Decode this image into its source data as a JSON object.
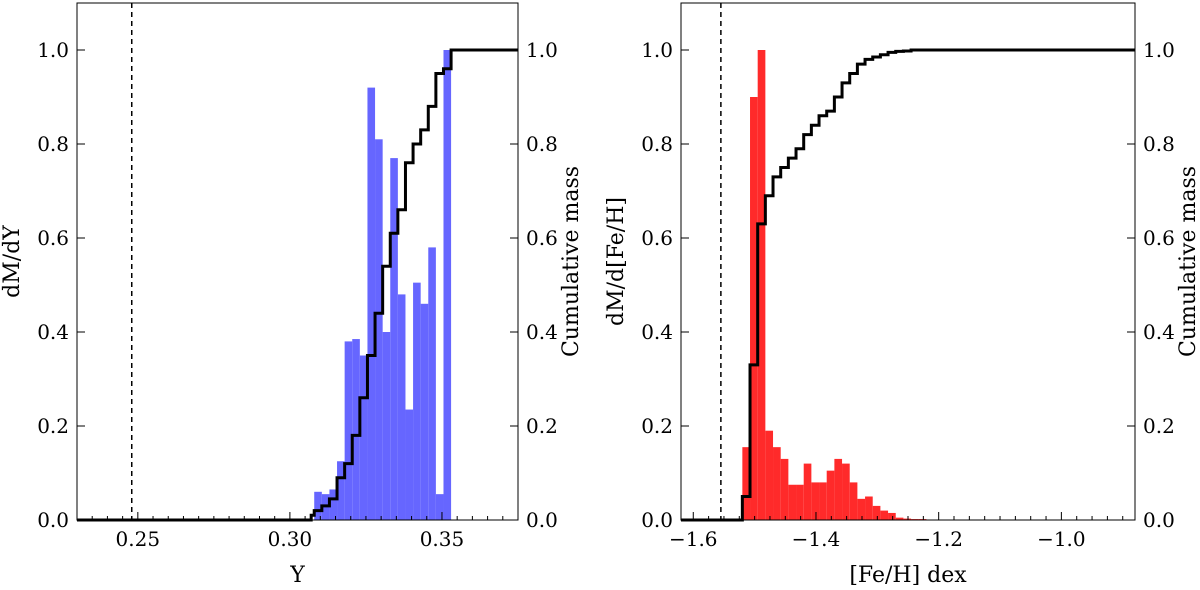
{
  "chart_data": [
    {
      "type": "bar",
      "id": "helium",
      "xlabel": "Y",
      "ylabel": "dM/dY",
      "y2label": "Cumulative mass",
      "xlim": [
        0.23,
        0.375
      ],
      "ylim": [
        0,
        1.1
      ],
      "xticks": [
        0.25,
        0.3,
        0.35
      ],
      "xtick_labels": [
        "0.25",
        "0.30",
        "0.35"
      ],
      "yticks": [
        0,
        0.2,
        0.4,
        0.6,
        0.8,
        1.0
      ],
      "ytick_labels": [
        "0.0",
        "0.2",
        "0.4",
        "0.6",
        "0.8",
        "1.0"
      ],
      "y2tick_labels": [
        "0.0",
        "0.2",
        "0.4",
        "0.6",
        "0.8",
        "1.0"
      ],
      "minor_x_step": 0.005,
      "bar_color": "#6666ff",
      "bin_edges": [
        0.308,
        0.3105,
        0.313,
        0.3155,
        0.318,
        0.3205,
        0.323,
        0.3255,
        0.328,
        0.3305,
        0.333,
        0.3355,
        0.338,
        0.3405,
        0.343,
        0.3455,
        0.348,
        0.3505,
        0.353,
        0.3555,
        0.358
      ],
      "values": [
        0.06,
        0.055,
        0.065,
        0.125,
        0.38,
        0.385,
        0.35,
        0.92,
        0.81,
        0.4,
        0.77,
        0.48,
        0.235,
        0.505,
        0.46,
        0.58,
        0.055,
        1.0,
        0.0,
        0.0
      ],
      "cumulative": {
        "label": "Cumulative mass",
        "x": [
          0.23,
          0.307,
          0.308,
          0.3105,
          0.313,
          0.3155,
          0.318,
          0.3205,
          0.323,
          0.3255,
          0.328,
          0.3305,
          0.333,
          0.3355,
          0.338,
          0.3405,
          0.343,
          0.3455,
          0.348,
          0.3505,
          0.353,
          0.3555,
          0.358,
          0.375
        ],
        "y": [
          0.0,
          0.01,
          0.02,
          0.03,
          0.045,
          0.09,
          0.12,
          0.18,
          0.26,
          0.35,
          0.44,
          0.54,
          0.61,
          0.66,
          0.76,
          0.8,
          0.83,
          0.88,
          0.95,
          0.96,
          1.0,
          1.0,
          1.0,
          1.0
        ]
      },
      "reference_line": {
        "x": 0.248,
        "style": "dashed"
      }
    },
    {
      "type": "bar",
      "id": "metallicity",
      "xlabel": "[Fe/H] dex",
      "ylabel": "dM/d[Fe/H]",
      "y2label": "Cumulative mass",
      "xlim": [
        -1.62,
        -0.88
      ],
      "ylim": [
        0,
        1.1
      ],
      "xticks": [
        -1.6,
        -1.4,
        -1.2,
        -1.0
      ],
      "xtick_labels": [
        "−1.6",
        "−1.4",
        "−1.2",
        "−1.0"
      ],
      "yticks": [
        0,
        0.2,
        0.4,
        0.6,
        0.8,
        1.0
      ],
      "ytick_labels": [
        "0.0",
        "0.2",
        "0.4",
        "0.6",
        "0.8",
        "1.0"
      ],
      "y2tick_labels": [
        "0.0",
        "0.2",
        "0.4",
        "0.6",
        "0.8",
        "1.0"
      ],
      "minor_x_step": 0.025,
      "bar_color": "#ff2a2a",
      "bin_edges": [
        -1.52,
        -1.5075,
        -1.495,
        -1.4825,
        -1.47,
        -1.4575,
        -1.445,
        -1.4325,
        -1.42,
        -1.4075,
        -1.395,
        -1.3825,
        -1.37,
        -1.3575,
        -1.345,
        -1.3325,
        -1.32,
        -1.3075,
        -1.295,
        -1.2825,
        -1.27,
        -1.2575,
        -1.245,
        -1.2325,
        -1.22,
        -1.2075
      ],
      "values": [
        0.155,
        0.9,
        1.0,
        0.19,
        0.155,
        0.13,
        0.075,
        0.075,
        0.12,
        0.08,
        0.08,
        0.105,
        0.13,
        0.12,
        0.08,
        0.045,
        0.05,
        0.03,
        0.02,
        0.015,
        0.005,
        0.003,
        0.002,
        0.002,
        0.001
      ],
      "cumulative": {
        "label": "Cumulative mass",
        "x": [
          -1.62,
          -1.525,
          -1.52,
          -1.5075,
          -1.495,
          -1.4825,
          -1.47,
          -1.4575,
          -1.445,
          -1.4325,
          -1.42,
          -1.4075,
          -1.395,
          -1.3825,
          -1.37,
          -1.3575,
          -1.345,
          -1.3325,
          -1.32,
          -1.3075,
          -1.295,
          -1.2825,
          -1.27,
          -1.2575,
          -1.245,
          -1.2325,
          -1.22,
          -0.88
        ],
        "y": [
          0.0,
          0.0,
          0.05,
          0.33,
          0.63,
          0.69,
          0.73,
          0.75,
          0.77,
          0.79,
          0.82,
          0.84,
          0.86,
          0.87,
          0.9,
          0.93,
          0.95,
          0.97,
          0.98,
          0.985,
          0.99,
          0.995,
          0.997,
          0.998,
          1.0,
          1.0,
          1.0,
          1.0
        ]
      },
      "reference_line": {
        "x": -1.555,
        "style": "dashed"
      }
    }
  ]
}
